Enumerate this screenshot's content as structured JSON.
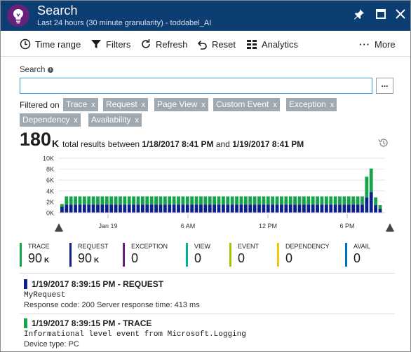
{
  "window": {
    "title": "Search",
    "subtitle": "Last 24 hours (30 minute granularity) - toddabel_AI"
  },
  "toolbar": {
    "time_range": "Time range",
    "filters": "Filters",
    "refresh": "Refresh",
    "reset": "Reset",
    "analytics": "Analytics",
    "more": "More"
  },
  "search": {
    "label": "Search",
    "value": "",
    "more_button": "..."
  },
  "filters": {
    "label": "Filtered on",
    "chips": [
      "Trace",
      "Request",
      "Page View",
      "Custom Event",
      "Exception",
      "Dependency",
      "Availability"
    ]
  },
  "totals": {
    "count": "180",
    "unit": "K",
    "text_before": "total results between",
    "start": "1/18/2017 8:41 PM",
    "and": "and",
    "end": "1/19/2017 8:41 PM"
  },
  "colors": {
    "trace": "#16a34a",
    "request": "#0c1f8a",
    "exception": "#68217a",
    "view": "#00b294",
    "event": "#a4c400",
    "dependency": "#f2c80f",
    "availability": "#0072c6"
  },
  "chart_data": {
    "type": "bar",
    "stacked": true,
    "ylim": [
      0,
      10000
    ],
    "y_ticks": [
      "10K",
      "8K",
      "6K",
      "4K",
      "2K",
      "0K"
    ],
    "x_ticks": [
      "Jan 19",
      "6 AM",
      "12 PM",
      "6 PM"
    ],
    "series": [
      {
        "name": "REQUEST",
        "values": [
          1100,
          1500,
          1500,
          1500,
          1500,
          1500,
          1500,
          1500,
          1500,
          1500,
          1500,
          1500,
          1500,
          1500,
          1500,
          1500,
          1500,
          1500,
          1500,
          1500,
          1500,
          1500,
          1500,
          1500,
          1500,
          1500,
          1500,
          1500,
          1500,
          1500,
          1500,
          1500,
          1500,
          1500,
          1500,
          1500,
          1500,
          1500,
          1500,
          1500,
          1500,
          1500,
          1500,
          1500,
          1500,
          1500,
          1500,
          1500,
          1500,
          1500,
          1500,
          1500,
          1500,
          1500,
          1500,
          1500,
          1500,
          1500,
          1500,
          1500,
          1500,
          1500,
          1500,
          1500,
          1500,
          1500,
          1500,
          1500,
          2800,
          3800,
          1400,
          700
        ]
      },
      {
        "name": "TRACE",
        "values": [
          500,
          1500,
          1500,
          1500,
          1500,
          1500,
          1500,
          1500,
          1500,
          1500,
          1500,
          1500,
          1500,
          1500,
          1500,
          1500,
          1500,
          1500,
          1500,
          1500,
          1500,
          1500,
          1500,
          1500,
          1500,
          1500,
          1500,
          1500,
          1500,
          1500,
          1500,
          1500,
          1500,
          1500,
          1500,
          1500,
          1500,
          1500,
          1500,
          1500,
          1500,
          1500,
          1500,
          1500,
          1500,
          1500,
          1500,
          1500,
          1500,
          1500,
          1500,
          1500,
          1500,
          1500,
          1500,
          1500,
          1500,
          1500,
          1500,
          1500,
          1500,
          1500,
          1500,
          1500,
          1500,
          1500,
          1500,
          1500,
          3800,
          4300,
          1400,
          700
        ]
      }
    ]
  },
  "legend": [
    {
      "key": "trace",
      "label": "TRACE",
      "value": "90",
      "unit": "K"
    },
    {
      "key": "request",
      "label": "REQUEST",
      "value": "90",
      "unit": "K"
    },
    {
      "key": "exception",
      "label": "EXCEPTION",
      "value": "0",
      "unit": ""
    },
    {
      "key": "view",
      "label": "VIEW",
      "value": "0",
      "unit": ""
    },
    {
      "key": "event",
      "label": "EVENT",
      "value": "0",
      "unit": ""
    },
    {
      "key": "dependency",
      "label": "DEPENDENCY",
      "value": "0",
      "unit": ""
    },
    {
      "key": "availability",
      "label": "AVAIL",
      "value": "0",
      "unit": ""
    }
  ],
  "results": [
    {
      "color_key": "request",
      "title": "1/19/2017 8:39:15 PM - REQUEST",
      "line": "MyRequest",
      "meta": "Response code: 200  Server response time: 413 ms"
    },
    {
      "color_key": "trace",
      "title": "1/19/2017 8:39:15 PM - TRACE",
      "line": "Informational level event from Microsoft.Logging",
      "meta": "Device type: PC"
    }
  ]
}
